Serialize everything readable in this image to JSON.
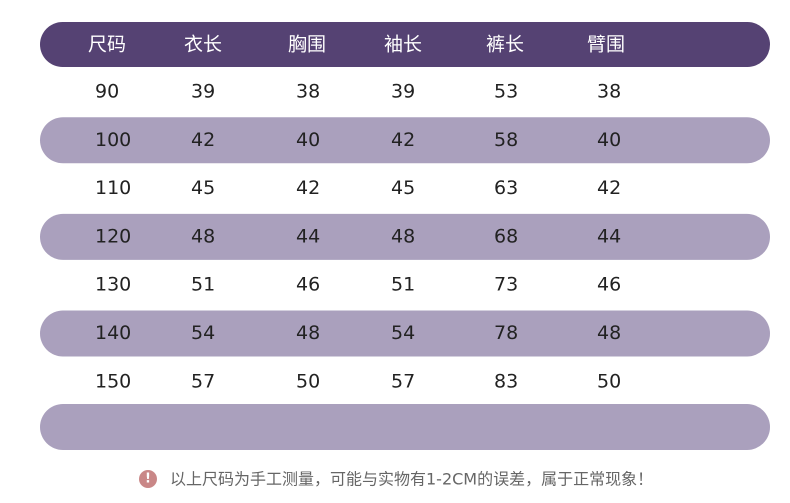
{
  "table": {
    "header": [
      "尺码",
      "衣长",
      "胸围",
      "袖长",
      "裤长",
      "臂围"
    ],
    "rows": [
      [
        90,
        39,
        38,
        39,
        53,
        38
      ],
      [
        100,
        42,
        40,
        42,
        58,
        40
      ],
      [
        110,
        45,
        42,
        45,
        63,
        42
      ],
      [
        120,
        48,
        44,
        48,
        68,
        44
      ],
      [
        130,
        51,
        46,
        51,
        73,
        46
      ],
      [
        140,
        54,
        48,
        54,
        78,
        48
      ],
      [
        150,
        57,
        50,
        57,
        83,
        50
      ]
    ]
  },
  "footnote": "以上尺码为手工测量，可能与实物有1-2CM的误差，属于正常现象！"
}
